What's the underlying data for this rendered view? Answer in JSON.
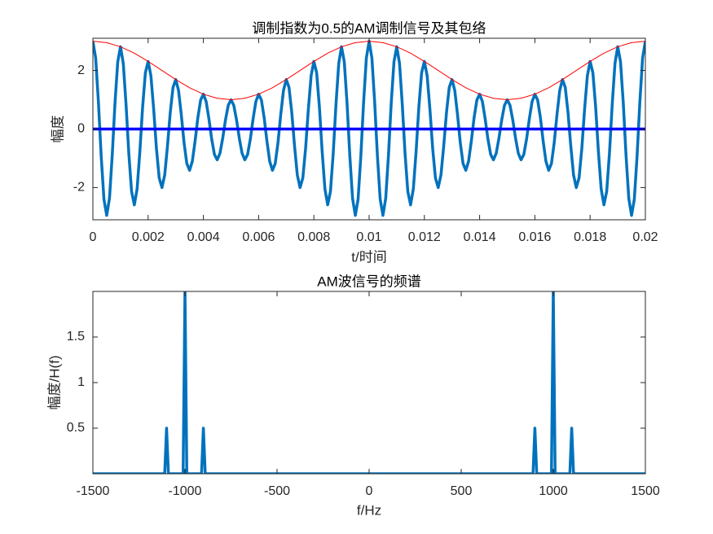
{
  "chart_data": [
    {
      "type": "line",
      "title": "调制指数为0.5的AM调制信号及其包络",
      "xlabel": "t/时间",
      "ylabel": "幅度",
      "xlim": [
        0,
        0.02
      ],
      "ylim": [
        -3.1,
        3.1
      ],
      "xticks": [
        0,
        0.002,
        0.004,
        0.006,
        0.008,
        0.01,
        0.012,
        0.014,
        0.016,
        0.018,
        0.02
      ],
      "yticks": [
        -2,
        0,
        2
      ],
      "series": [
        {
          "color": "#0072bd",
          "line_width": 3.5,
          "x": [
            0,
            0.0001,
            0.0002,
            0.0003,
            0.0004,
            0.0005,
            0.0006,
            0.0007,
            0.0008,
            0.0009,
            0.001,
            0.0011,
            0.0012,
            0.0013,
            0.0014,
            0.0015,
            0.0016,
            0.0017,
            0.0018,
            0.0019,
            0.002,
            0.0021,
            0.0022,
            0.0023,
            0.0024,
            0.0025,
            0.0026,
            0.0027,
            0.0028,
            0.0029,
            0.003,
            0.0031,
            0.0032,
            0.0033,
            0.0034,
            0.0035,
            0.0036,
            0.0037,
            0.0038,
            0.0039,
            0.004,
            0.0041,
            0.0042,
            0.0043,
            0.0044,
            0.0045,
            0.0046,
            0.0047,
            0.0048,
            0.0049,
            0.005,
            0.0051,
            0.0052,
            0.0053,
            0.0054,
            0.0055,
            0.0056,
            0.0057,
            0.0058,
            0.0059,
            0.006,
            0.0061,
            0.0062,
            0.0063,
            0.0064,
            0.0065,
            0.0066,
            0.0067,
            0.0068,
            0.0069,
            0.007,
            0.0071,
            0.0072,
            0.0073,
            0.0074,
            0.0075,
            0.0076,
            0.0077,
            0.0078,
            0.0079,
            0.008,
            0.0081,
            0.0082,
            0.0083,
            0.0084,
            0.0085,
            0.0086,
            0.0087,
            0.0088,
            0.0089,
            0.009,
            0.0091,
            0.0092,
            0.0093,
            0.0094,
            0.0095,
            0.0096,
            0.0097,
            0.0098,
            0.0099,
            0.01,
            0.0101,
            0.0102,
            0.0103,
            0.0104,
            0.0105,
            0.0106,
            0.0107,
            0.0108,
            0.0109,
            0.011,
            0.0111,
            0.0112,
            0.0113,
            0.0114,
            0.0115,
            0.0116,
            0.0117,
            0.0118,
            0.0119,
            0.012,
            0.0121,
            0.0122,
            0.0123,
            0.0124,
            0.0125,
            0.0126,
            0.0127,
            0.0128,
            0.0129,
            0.013,
            0.0131,
            0.0132,
            0.0133,
            0.0134,
            0.0135,
            0.0136,
            0.0137,
            0.0138,
            0.0139,
            0.014,
            0.0141,
            0.0142,
            0.0143,
            0.0144,
            0.0145,
            0.0146,
            0.0147,
            0.0148,
            0.0149,
            0.015,
            0.0151,
            0.0152,
            0.0153,
            0.0154,
            0.0155,
            0.0156,
            0.0157,
            0.0158,
            0.0159,
            0.016,
            0.0161,
            0.0162,
            0.0163,
            0.0164,
            0.0165,
            0.0166,
            0.0167,
            0.0168,
            0.0169,
            0.017,
            0.0171,
            0.0172,
            0.0173,
            0.0174,
            0.0175,
            0.0176,
            0.0177,
            0.0178,
            0.0179,
            0.018,
            0.0181,
            0.0182,
            0.0183,
            0.0184,
            0.0185,
            0.0186,
            0.0187,
            0.0188,
            0.0189,
            0.019,
            0.0191,
            0.0192,
            0.0193,
            0.0194,
            0.0195,
            0.0196,
            0.0197,
            0.0198,
            0.0199,
            0.02
          ],
          "values": [
            3,
            2.43,
            0.92,
            -0.92,
            -2.4,
            -2.95,
            -2.37,
            -0.9,
            0.89,
            2.3,
            2.81,
            2.24,
            0.84,
            -0.83,
            -2.13,
            -2.59,
            -2.05,
            -0.77,
            0.75,
            1.92,
            2.31,
            1.82,
            0.68,
            -0.66,
            -1.67,
            -2,
            -1.57,
            -0.58,
            0.56,
            1.42,
            1.69,
            1.32,
            0.49,
            -0.47,
            -1.18,
            -1.41,
            -1.1,
            -0.41,
            0.39,
            0.99,
            1.19,
            0.94,
            0.35,
            -0.34,
            -0.87,
            -1.05,
            -0.83,
            -0.31,
            0.31,
            0.81,
            1,
            0.81,
            0.31,
            -0.31,
            -0.83,
            -1.05,
            -0.87,
            -0.34,
            0.35,
            0.94,
            1.19,
            0.99,
            0.39,
            -0.41,
            -1.1,
            -1.41,
            -1.18,
            -0.47,
            0.49,
            1.32,
            1.69,
            1.42,
            0.56,
            -0.58,
            -1.57,
            -2,
            -1.67,
            -0.66,
            0.68,
            1.82,
            2.31,
            1.92,
            0.75,
            -0.77,
            -2.05,
            -2.59,
            -2.13,
            -0.83,
            0.84,
            2.24,
            2.81,
            2.3,
            0.89,
            -0.9,
            -2.37,
            -2.95,
            -2.4,
            -0.92,
            0.92,
            2.43,
            3,
            2.43,
            0.92,
            -0.92,
            -2.4,
            -2.95,
            -2.37,
            -0.9,
            0.89,
            2.3,
            2.81,
            2.24,
            0.84,
            -0.83,
            -2.13,
            -2.59,
            -2.05,
            -0.77,
            0.75,
            1.92,
            2.31,
            1.82,
            0.68,
            -0.66,
            -1.67,
            -2,
            -1.57,
            -0.58,
            0.56,
            1.42,
            1.69,
            1.32,
            0.49,
            -0.47,
            -1.18,
            -1.41,
            -1.1,
            -0.41,
            0.39,
            0.99,
            1.19,
            0.94,
            0.35,
            -0.34,
            -0.87,
            -1.05,
            -0.83,
            -0.31,
            0.31,
            0.81,
            1,
            0.81,
            0.31,
            -0.31,
            -0.83,
            -1.05,
            -0.87,
            -0.34,
            0.35,
            0.94,
            1.19,
            0.99,
            0.39,
            -0.41,
            -1.1,
            -1.41,
            -1.18,
            -0.47,
            0.49,
            1.32,
            1.69,
            1.42,
            0.56,
            -0.58,
            -1.57,
            -2,
            -1.67,
            -0.66,
            0.68,
            1.82,
            2.31,
            1.92,
            0.75,
            -0.77,
            -2.05,
            -2.59,
            -2.13,
            -0.83,
            0.84,
            2.24,
            2.81,
            2.3,
            0.89,
            -0.9,
            -2.37,
            -2.95,
            -2.4,
            -0.92,
            0.92,
            2.43,
            3
          ]
        },
        {
          "color": "#0000ff",
          "line_width": 3.5,
          "x": [
            0,
            0.02
          ],
          "values": [
            0,
            0
          ]
        },
        {
          "color": "#ff0000",
          "line_width": 1,
          "x": [
            0,
            0.0005,
            0.001,
            0.0015,
            0.002,
            0.0025,
            0.003,
            0.0035,
            0.004,
            0.0045,
            0.005,
            0.0055,
            0.006,
            0.0065,
            0.007,
            0.0075,
            0.008,
            0.0085,
            0.009,
            0.0095,
            0.01,
            0.0105,
            0.011,
            0.0115,
            0.012,
            0.0125,
            0.013,
            0.0135,
            0.014,
            0.0145,
            0.015,
            0.0155,
            0.016,
            0.0165,
            0.017,
            0.0175,
            0.018,
            0.0185,
            0.019,
            0.0195,
            0.02
          ],
          "values": [
            3,
            2.95,
            2.81,
            2.59,
            2.31,
            2,
            1.69,
            1.41,
            1.19,
            1.05,
            1,
            1.05,
            1.19,
            1.41,
            1.69,
            2,
            2.31,
            2.59,
            2.81,
            2.95,
            3,
            2.95,
            2.81,
            2.59,
            2.31,
            2,
            1.69,
            1.41,
            1.19,
            1.05,
            1,
            1.05,
            1.19,
            1.41,
            1.69,
            2,
            2.31,
            2.59,
            2.81,
            2.95,
            3
          ]
        }
      ]
    },
    {
      "type": "line",
      "title": "AM波信号的频谱",
      "xlabel": "f/Hz",
      "ylabel": "幅度/H(f)",
      "xlim": [
        -1500,
        1500
      ],
      "ylim": [
        0,
        2
      ],
      "xticks": [
        -1500,
        -1000,
        -500,
        0,
        500,
        1000,
        1500
      ],
      "yticks": [
        0.5,
        1,
        1.5
      ],
      "series": [
        {
          "color": "#0072bd",
          "line_width": 3.5,
          "x": [
            -1500,
            -1110,
            -1100,
            -1090,
            -1010,
            -1000,
            -990,
            -910,
            -900,
            -890,
            890,
            900,
            910,
            990,
            1000,
            1010,
            1090,
            1100,
            1110,
            1500
          ],
          "values": [
            0,
            0,
            0.5,
            0,
            0,
            2,
            0,
            0,
            0.5,
            0,
            0,
            0.5,
            0,
            0,
            2,
            0,
            0,
            0.5,
            0,
            0
          ]
        }
      ]
    }
  ]
}
